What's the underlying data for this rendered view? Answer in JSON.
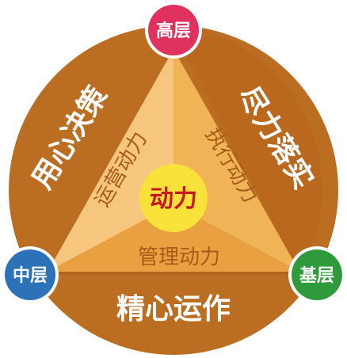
{
  "diagram": {
    "center": "动力",
    "nodes": {
      "top": "高层",
      "left": "中层",
      "right": "基层"
    },
    "outer": {
      "left": "用心决策",
      "right": "尽力落实",
      "bottom": "精心运作"
    },
    "inner": {
      "left": "运营动力",
      "right": "执行动力",
      "bottom": "管理动力"
    }
  },
  "colors": {
    "ring": "#bb6d22",
    "ring_right": "#b8661c",
    "triangle_left": "#f6c57e",
    "triangle_right": "#f0b356",
    "triangle_bottom": "#e8a040",
    "inner_text": "#a85a18",
    "center_fill": "#f8e23a",
    "center_text": "#c8161d",
    "node_top": "#e0325e",
    "node_left": "#2b72b8",
    "node_right": "#2f9a3b"
  }
}
